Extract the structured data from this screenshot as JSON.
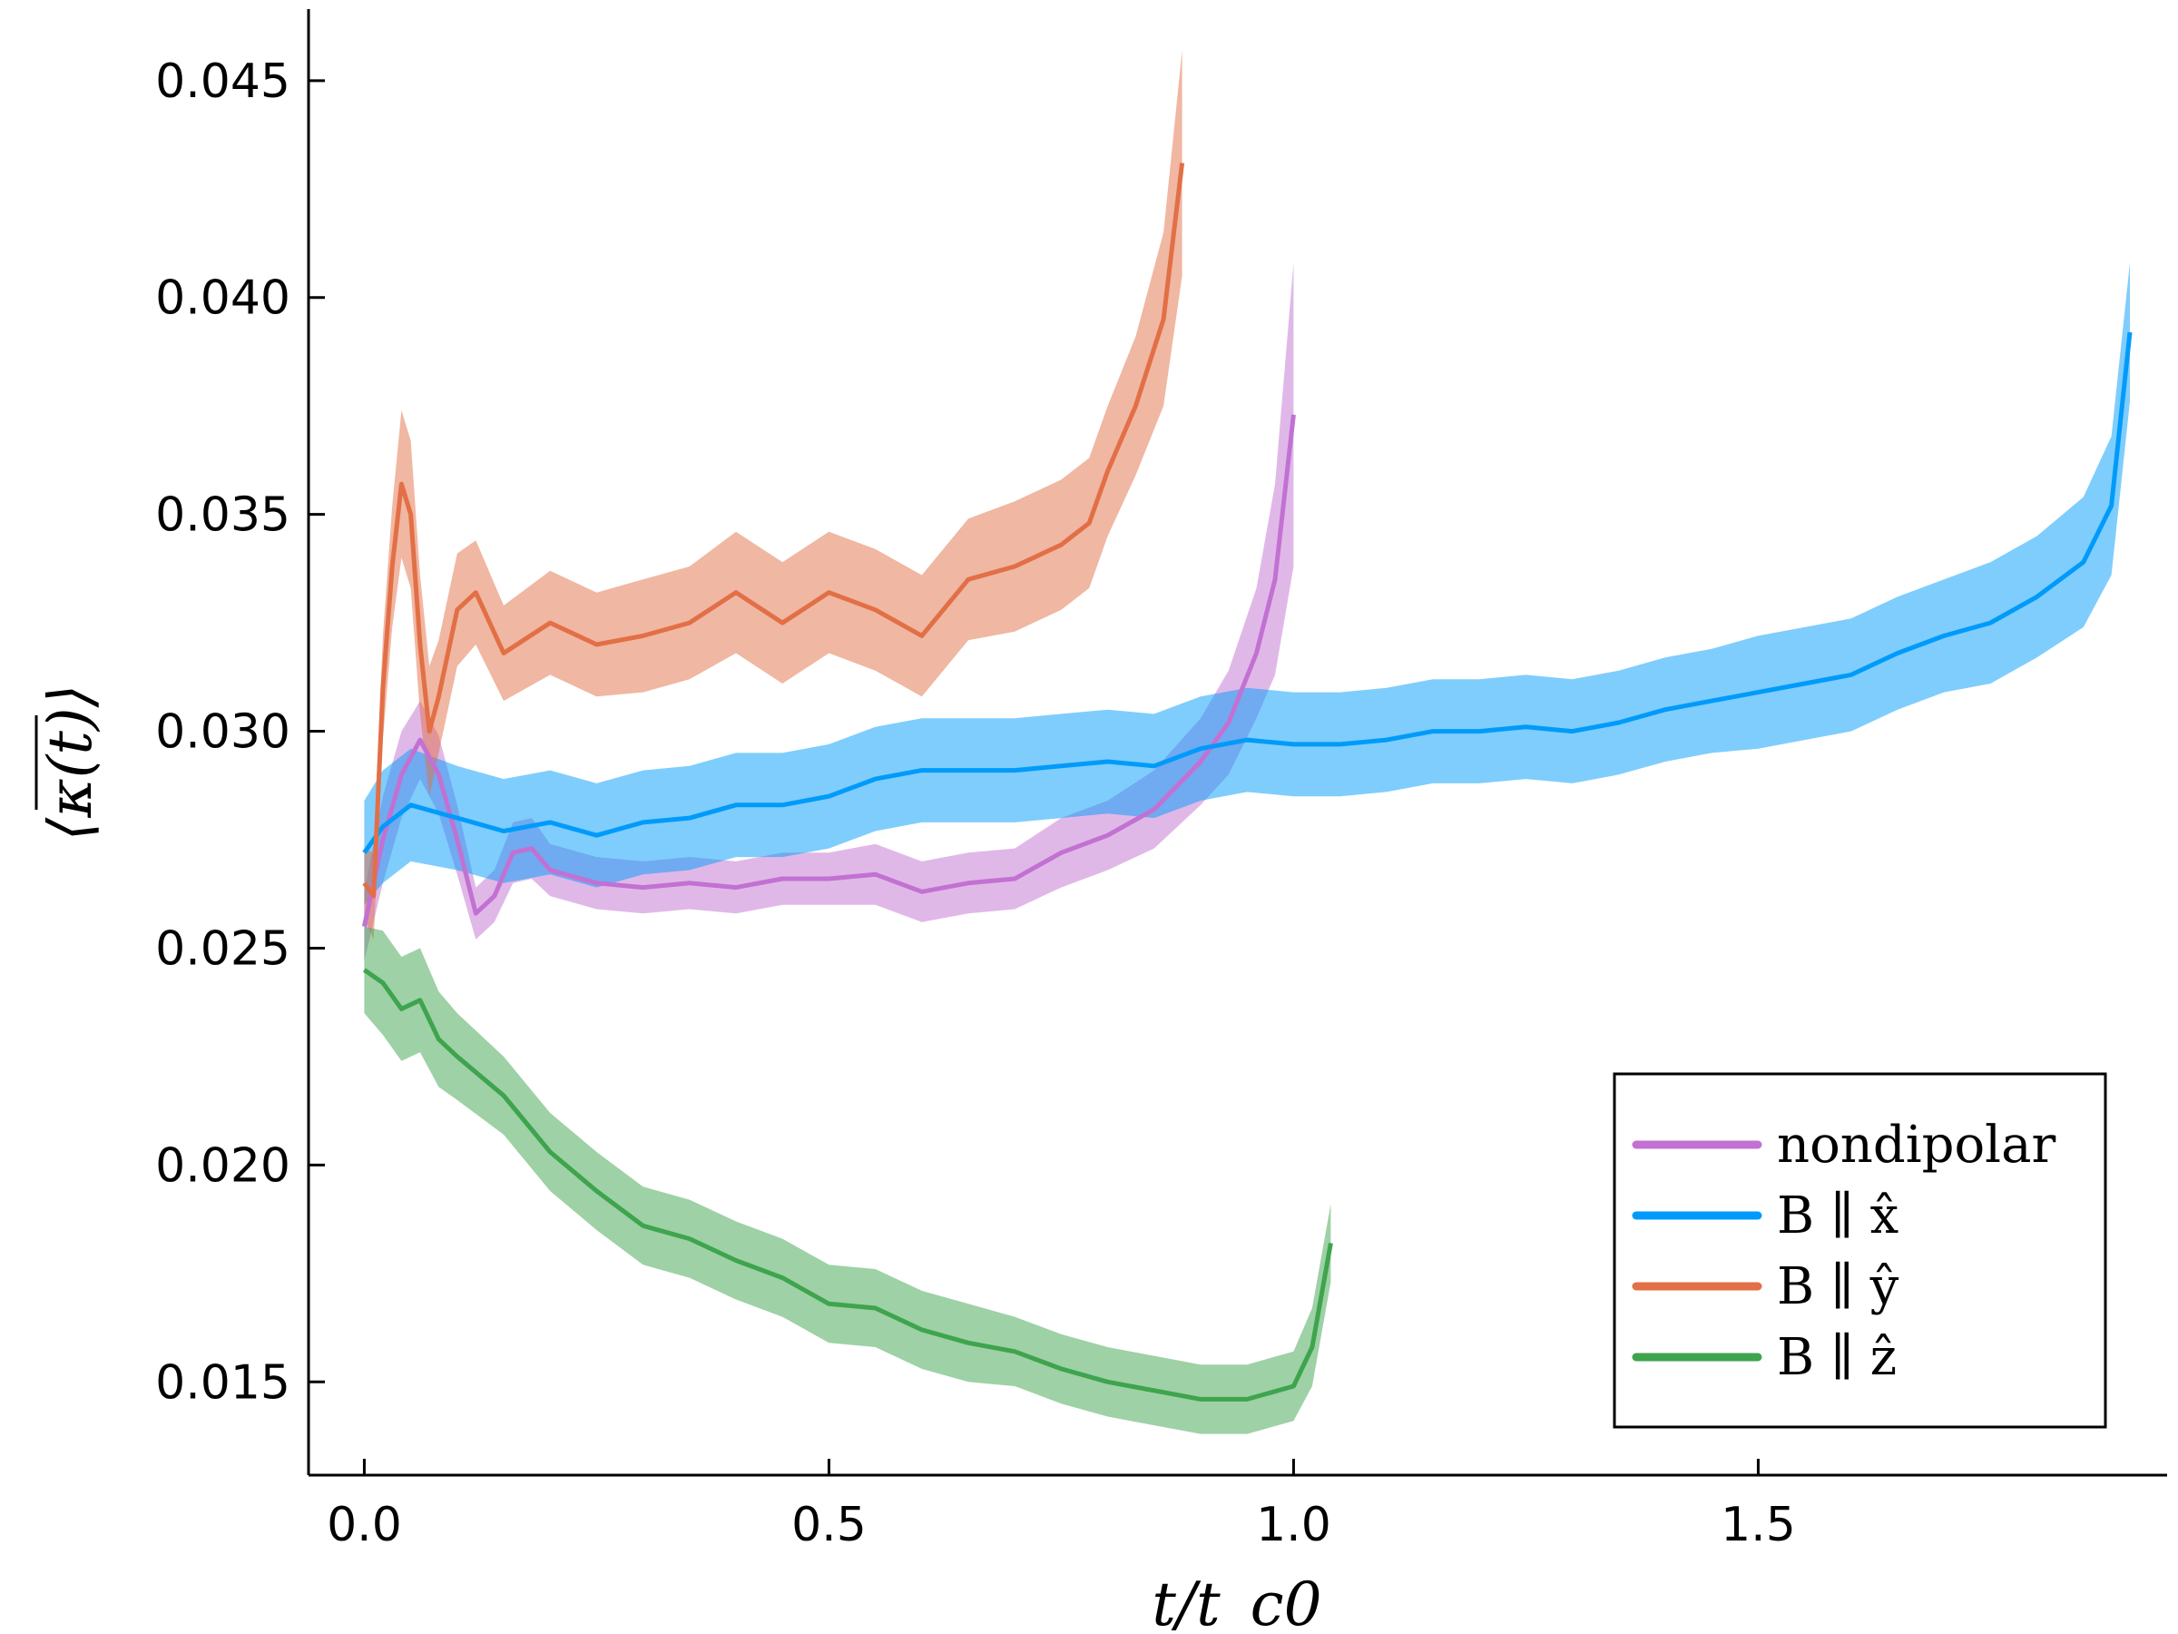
{
  "chart_data": {
    "type": "line",
    "xlabel": "t/t_c0",
    "ylabel": "⟨κ(t)⟩",
    "xlim": [
      -0.06,
      1.94
    ],
    "ylim": [
      0.01285,
      0.04665
    ],
    "x_ticks": [
      0.0,
      0.5,
      1.0,
      1.5
    ],
    "x_tick_labels": [
      "0.0",
      "0.5",
      "1.0",
      "1.5"
    ],
    "y_ticks": [
      0.015,
      0.02,
      0.025,
      0.03,
      0.035,
      0.04,
      0.045
    ],
    "y_tick_labels": [
      "0.015",
      "0.020",
      "0.025",
      "0.030",
      "0.035",
      "0.040",
      "0.045"
    ],
    "grid": false,
    "legend": {
      "placement": "bottom-right",
      "entries": [
        "nondipolar",
        "B ∥ x̂",
        "B ∥ ŷ",
        "B ∥ ẑ"
      ]
    },
    "series": [
      {
        "name": "nondipolar",
        "color": "#c271d2",
        "x": [
          0,
          0.02,
          0.04,
          0.06,
          0.08,
          0.1,
          0.12,
          0.14,
          0.16,
          0.18,
          0.2,
          0.25,
          0.3,
          0.35,
          0.4,
          0.45,
          0.5,
          0.55,
          0.6,
          0.65,
          0.7,
          0.75,
          0.8,
          0.85,
          0.9,
          0.93,
          0.96,
          0.98,
          1.0
        ],
        "y": [
          0.0255,
          0.0275,
          0.029,
          0.0298,
          0.029,
          0.0275,
          0.0258,
          0.0262,
          0.0272,
          0.0273,
          0.0268,
          0.0265,
          0.0264,
          0.0265,
          0.0264,
          0.0266,
          0.0266,
          0.0267,
          0.0263,
          0.0265,
          0.0266,
          0.0272,
          0.0276,
          0.0282,
          0.0293,
          0.0302,
          0.0318,
          0.0335,
          0.0373
        ],
        "band": [
          0.0008,
          0.001,
          0.001,
          0.0009,
          0.0009,
          0.0008,
          0.0006,
          0.0006,
          0.0007,
          0.0007,
          0.0006,
          0.0006,
          0.0006,
          0.0006,
          0.0006,
          0.0006,
          0.0006,
          0.0007,
          0.0007,
          0.0007,
          0.0007,
          0.0008,
          0.0008,
          0.0009,
          0.001,
          0.0012,
          0.0015,
          0.0022,
          0.0035
        ]
      },
      {
        "name": "B ∥ x̂",
        "color": "#009bfa",
        "x": [
          0,
          0.02,
          0.05,
          0.1,
          0.15,
          0.2,
          0.25,
          0.3,
          0.35,
          0.4,
          0.45,
          0.5,
          0.55,
          0.6,
          0.65,
          0.7,
          0.75,
          0.8,
          0.85,
          0.9,
          0.95,
          1.0,
          1.05,
          1.1,
          1.15,
          1.2,
          1.25,
          1.3,
          1.35,
          1.4,
          1.45,
          1.5,
          1.55,
          1.6,
          1.65,
          1.7,
          1.75,
          1.8,
          1.85,
          1.88,
          1.9
        ],
        "y": [
          0.0272,
          0.0278,
          0.0283,
          0.028,
          0.0277,
          0.0279,
          0.0276,
          0.0279,
          0.028,
          0.0283,
          0.0283,
          0.0285,
          0.0289,
          0.0291,
          0.0291,
          0.0291,
          0.0292,
          0.0293,
          0.0292,
          0.0296,
          0.0298,
          0.0297,
          0.0297,
          0.0298,
          0.03,
          0.03,
          0.0301,
          0.03,
          0.0302,
          0.0305,
          0.0307,
          0.0309,
          0.0311,
          0.0313,
          0.0318,
          0.0322,
          0.0325,
          0.0331,
          0.0339,
          0.0352,
          0.0392
        ],
        "band": [
          0.0012,
          0.0013,
          0.0013,
          0.0012,
          0.0012,
          0.0012,
          0.0012,
          0.0012,
          0.0012,
          0.0012,
          0.0012,
          0.0012,
          0.0012,
          0.0012,
          0.0012,
          0.0012,
          0.0012,
          0.0012,
          0.0012,
          0.0012,
          0.0012,
          0.0012,
          0.0012,
          0.0012,
          0.0012,
          0.0012,
          0.0012,
          0.0012,
          0.0012,
          0.0012,
          0.0012,
          0.0013,
          0.0013,
          0.0013,
          0.0013,
          0.0013,
          0.0014,
          0.0014,
          0.0015,
          0.0016,
          0.0016
        ]
      },
      {
        "name": "B ∥ ŷ",
        "color": "#e26f46",
        "x": [
          0,
          0.01,
          0.02,
          0.03,
          0.04,
          0.05,
          0.06,
          0.07,
          0.08,
          0.09,
          0.1,
          0.12,
          0.15,
          0.2,
          0.25,
          0.3,
          0.35,
          0.4,
          0.45,
          0.5,
          0.55,
          0.6,
          0.65,
          0.7,
          0.75,
          0.78,
          0.8,
          0.83,
          0.86,
          0.88
        ],
        "y": [
          0.0265,
          0.0262,
          0.031,
          0.0338,
          0.0357,
          0.035,
          0.032,
          0.03,
          0.0308,
          0.0318,
          0.0328,
          0.0332,
          0.0318,
          0.0325,
          0.032,
          0.0322,
          0.0325,
          0.0332,
          0.0325,
          0.0332,
          0.0328,
          0.0322,
          0.0335,
          0.0338,
          0.0343,
          0.0348,
          0.036,
          0.0375,
          0.0395,
          0.0431
        ],
        "band": [
          0.0008,
          0.001,
          0.0012,
          0.0014,
          0.0017,
          0.0017,
          0.0016,
          0.0015,
          0.0013,
          0.0013,
          0.0013,
          0.0012,
          0.0011,
          0.0012,
          0.0012,
          0.0013,
          0.0013,
          0.0014,
          0.0014,
          0.0014,
          0.0014,
          0.0014,
          0.0014,
          0.0015,
          0.0015,
          0.0015,
          0.0015,
          0.0016,
          0.002,
          0.0026
        ]
      },
      {
        "name": "B ∥ ẑ",
        "color": "#3ea44e",
        "x": [
          0,
          0.02,
          0.04,
          0.06,
          0.08,
          0.1,
          0.15,
          0.2,
          0.25,
          0.3,
          0.35,
          0.4,
          0.45,
          0.5,
          0.55,
          0.6,
          0.65,
          0.7,
          0.75,
          0.8,
          0.85,
          0.9,
          0.95,
          1.0,
          1.02,
          1.04
        ],
        "y": [
          0.0245,
          0.0242,
          0.0236,
          0.0238,
          0.0229,
          0.0225,
          0.0216,
          0.0203,
          0.0194,
          0.0186,
          0.0183,
          0.0178,
          0.0174,
          0.0168,
          0.0167,
          0.0162,
          0.0159,
          0.0157,
          0.0153,
          0.015,
          0.0148,
          0.0146,
          0.0146,
          0.0149,
          0.0158,
          0.0182
        ],
        "band": [
          0.001,
          0.0012,
          0.0012,
          0.0012,
          0.0011,
          0.001,
          0.0009,
          0.0009,
          0.0009,
          0.0009,
          0.0009,
          0.0009,
          0.0009,
          0.0009,
          0.0009,
          0.0009,
          0.0009,
          0.0008,
          0.0008,
          0.0008,
          0.0008,
          0.0008,
          0.0008,
          0.0008,
          0.0009,
          0.0009
        ]
      }
    ]
  }
}
